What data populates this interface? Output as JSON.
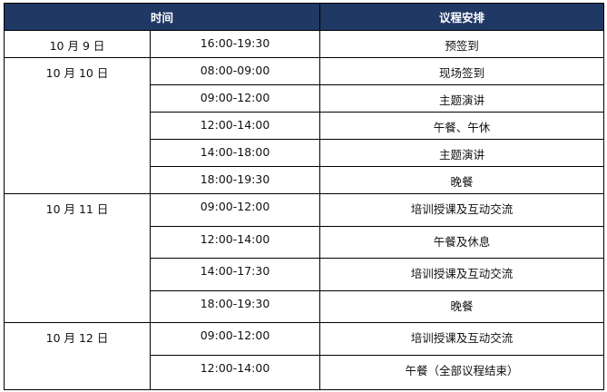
{
  "header": {
    "time": "时间",
    "agenda": "议程安排"
  },
  "colors": {
    "header_bg": "#1f3864",
    "header_text": "#ffffff"
  },
  "days": [
    {
      "date": "10 月 9 日",
      "sessions": [
        {
          "time": "16:00-19:30",
          "agenda": "预签到"
        }
      ]
    },
    {
      "date": "10 月 10 日",
      "sessions": [
        {
          "time": "08:00-09:00",
          "agenda": "现场签到"
        },
        {
          "time": "09:00-12:00",
          "agenda": "主题演讲"
        },
        {
          "time": "12:00-14:00",
          "agenda": "午餐、午休"
        },
        {
          "time": "14:00-18:00",
          "agenda": "主题演讲"
        },
        {
          "time": "18:00-19:30",
          "agenda": "晚餐"
        }
      ]
    },
    {
      "date": "10 月 11 日",
      "sessions": [
        {
          "time": "09:00-12:00",
          "agenda": "培训授课及互动交流"
        },
        {
          "time": "12:00-14:00",
          "agenda": "午餐及休息"
        },
        {
          "time": "14:00-17:30",
          "agenda": "培训授课及互动交流"
        },
        {
          "time": "18:00-19:30",
          "agenda": "晚餐"
        }
      ]
    },
    {
      "date": "10 月 12 日",
      "sessions": [
        {
          "time": "09:00-12:00",
          "agenda": "培训授课及互动交流"
        },
        {
          "time": "12:00-14:00",
          "agenda": "午餐（全部议程结束）"
        }
      ]
    }
  ]
}
